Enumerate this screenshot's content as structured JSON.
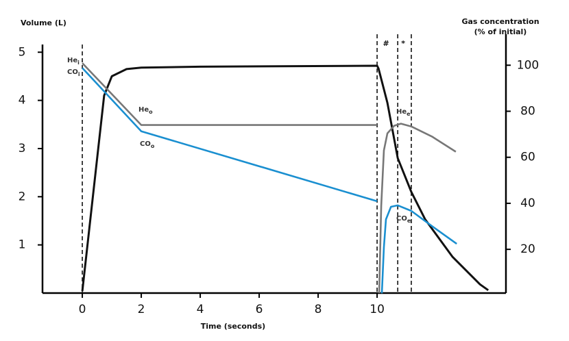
{
  "chart_data": {
    "type": "line",
    "y_label": "Volume (L)",
    "y2_label": [
      "Gas concentration",
      "(% of initial)"
    ],
    "x_label": "Time (seconds)",
    "xlim": [
      -1.35,
      14.37
    ],
    "xticks": [
      0,
      2,
      4,
      6,
      8,
      10
    ],
    "ylim": [
      0,
      5.16
    ],
    "yticks": [
      1,
      2,
      3,
      4,
      5
    ],
    "y2lim": [
      1,
      109
    ],
    "y2ticks": [
      20,
      40,
      60,
      80,
      100
    ],
    "markers": [
      0,
      10,
      10.7,
      11.16
    ],
    "marker_labels": [
      "#",
      "*"
    ],
    "series": [
      {
        "color": "#111111",
        "axis": "y",
        "x": [
          0,
          0.74,
          1,
          1.5,
          2,
          4,
          10,
          10.05,
          10.35,
          10.7,
          11.16,
          11.63,
          12.56,
          13.49,
          13.77
        ],
        "values": [
          0.04,
          4.1,
          4.5,
          4.65,
          4.68,
          4.7,
          4.72,
          4.66,
          3.95,
          2.8,
          2.1,
          1.53,
          0.75,
          0.18,
          0.06
        ]
      },
      {
        "color": "#777777",
        "axis": "y2",
        "x": [
          0,
          2,
          10,
          10.03,
          10.07,
          10.14,
          10.23,
          10.35,
          10.58,
          10.81,
          11.16,
          11.86,
          12.67
        ],
        "values": [
          100.9,
          74,
          74,
          null,
          1,
          39,
          63,
          70.4,
          73.7,
          74.6,
          73.4,
          69,
          62.4
        ]
      },
      {
        "color": "#1a8fd0",
        "axis": "y2",
        "x": [
          0,
          2,
          10,
          10.08,
          10.16,
          10.23,
          10.3,
          10.47,
          10.7,
          11.16,
          11.86,
          12.7
        ],
        "values": [
          98.8,
          71.3,
          40.9,
          null,
          0.9,
          21,
          33,
          38.5,
          39.1,
          36.7,
          30.1,
          22.4
        ]
      }
    ],
    "annotations": [
      {
        "main": "He",
        "sub": "i"
      },
      {
        "main": "CO",
        "sub": "i"
      },
      {
        "main": "He",
        "sub": "o"
      },
      {
        "main": "CO",
        "sub": "o"
      },
      {
        "main": "He",
        "sub": "e"
      },
      {
        "main": "CO",
        "sub": "e"
      }
    ]
  }
}
